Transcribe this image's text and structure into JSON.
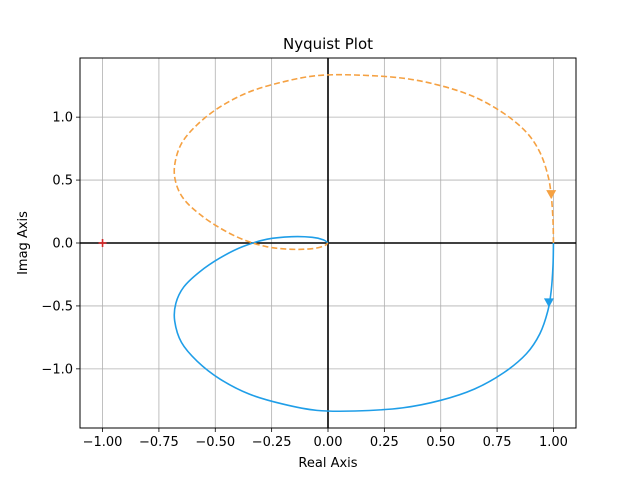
{
  "chart_data": {
    "type": "line",
    "title": "Nyquist Plot",
    "xlabel": "Real Axis",
    "ylabel": "Imag Axis",
    "xlim": [
      -1.1,
      1.1
    ],
    "ylim": [
      -1.47,
      1.47
    ],
    "xticks": [
      -1.0,
      -0.75,
      -0.5,
      -0.25,
      0.0,
      0.25,
      0.5,
      0.75,
      1.0
    ],
    "xtick_labels": [
      "−1.00",
      "−0.75",
      "−0.50",
      "−0.25",
      "0.00",
      "0.25",
      "0.50",
      "0.75",
      "1.00"
    ],
    "yticks": [
      -1.0,
      -0.5,
      0.0,
      0.5,
      1.0
    ],
    "ytick_labels": [
      "−1.0",
      "−0.5",
      "0.0",
      "0.5",
      "1.0"
    ],
    "grid": true,
    "critical_point": {
      "x": -1.0,
      "y": 0.0,
      "color": "#d62728"
    },
    "series": [
      {
        "style": "solid",
        "color": "#1f9ee8",
        "points": [
          [
            1.0,
            0.0
          ],
          [
            0.998,
            -0.18
          ],
          [
            0.99,
            -0.38
          ],
          [
            0.975,
            -0.54
          ],
          [
            0.94,
            -0.72
          ],
          [
            0.88,
            -0.88
          ],
          [
            0.78,
            -1.03
          ],
          [
            0.65,
            -1.16
          ],
          [
            0.5,
            -1.25
          ],
          [
            0.33,
            -1.31
          ],
          [
            0.12,
            -1.335
          ],
          [
            -0.05,
            -1.33
          ],
          [
            -0.2,
            -1.28
          ],
          [
            -0.35,
            -1.2
          ],
          [
            -0.48,
            -1.08
          ],
          [
            -0.58,
            -0.94
          ],
          [
            -0.65,
            -0.79
          ],
          [
            -0.68,
            -0.62
          ],
          [
            -0.675,
            -0.48
          ],
          [
            -0.64,
            -0.35
          ],
          [
            -0.57,
            -0.23
          ],
          [
            -0.48,
            -0.12
          ],
          [
            -0.38,
            -0.03
          ],
          [
            -0.27,
            0.03
          ],
          [
            -0.16,
            0.05
          ],
          [
            -0.07,
            0.045
          ],
          [
            -0.02,
            0.025
          ],
          [
            0.0,
            0.0
          ]
        ],
        "arrow": {
          "x": 0.98,
          "y": -0.48,
          "direction": "down"
        }
      },
      {
        "style": "dashed",
        "color": "#f5a142",
        "points": [
          [
            1.0,
            0.0
          ],
          [
            0.998,
            0.18
          ],
          [
            0.99,
            0.38
          ],
          [
            0.975,
            0.54
          ],
          [
            0.94,
            0.72
          ],
          [
            0.88,
            0.88
          ],
          [
            0.78,
            1.03
          ],
          [
            0.65,
            1.16
          ],
          [
            0.5,
            1.25
          ],
          [
            0.33,
            1.31
          ],
          [
            0.12,
            1.335
          ],
          [
            -0.05,
            1.33
          ],
          [
            -0.2,
            1.28
          ],
          [
            -0.35,
            1.2
          ],
          [
            -0.48,
            1.08
          ],
          [
            -0.58,
            0.94
          ],
          [
            -0.65,
            0.79
          ],
          [
            -0.68,
            0.62
          ],
          [
            -0.675,
            0.48
          ],
          [
            -0.64,
            0.35
          ],
          [
            -0.57,
            0.23
          ],
          [
            -0.48,
            0.12
          ],
          [
            -0.38,
            0.03
          ],
          [
            -0.27,
            -0.03
          ],
          [
            -0.16,
            -0.05
          ],
          [
            -0.07,
            -0.045
          ],
          [
            -0.02,
            -0.025
          ],
          [
            0.0,
            0.0
          ]
        ],
        "arrow": {
          "x": 0.99,
          "y": 0.38,
          "direction": "down"
        }
      }
    ]
  }
}
